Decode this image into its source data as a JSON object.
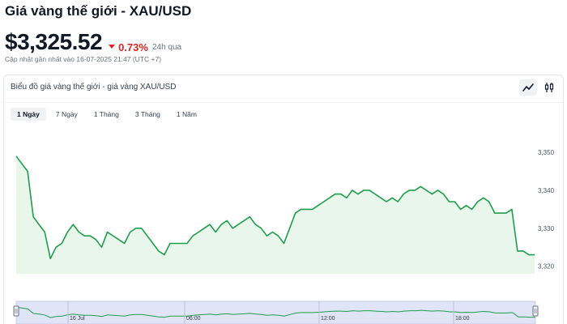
{
  "header": {
    "title": "Giá vàng thế giới - XAU/USD",
    "price": "$3,325.52",
    "change": "0.73%",
    "change_period": "24h qua",
    "updated": "Cập nhật gần nhất vào 16-07-2025 21:47 (UTC +7)"
  },
  "card": {
    "title": "Biểu đồ giá vàng thế giới - giá vàng XAU/USD",
    "tools": [
      {
        "icon": "line-chart-icon",
        "active": true
      },
      {
        "icon": "candlestick-icon",
        "active": false
      }
    ]
  },
  "ranges": [
    {
      "label": "1 Ngày",
      "active": true
    },
    {
      "label": "7 Ngày",
      "active": false
    },
    {
      "label": "1 Tháng",
      "active": false
    },
    {
      "label": "3 Tháng",
      "active": false
    },
    {
      "label": "1 Năm",
      "active": false
    }
  ],
  "colors": {
    "line": "#1e9e4a",
    "area": "#e9f6ec",
    "navigator_bg": "#dfe4f7",
    "down": "#dc2626"
  },
  "chart_data": {
    "type": "area",
    "ylim": [
      3318,
      3356
    ],
    "yticks": [
      "3,350",
      "3,340",
      "3,330",
      "3,320"
    ],
    "ytick_values": [
      3350,
      3340,
      3330,
      3320
    ],
    "values": [
      3349,
      3347,
      3345,
      3333,
      3331,
      3329,
      3322,
      3325,
      3326,
      3329,
      3331,
      3329,
      3328,
      3328,
      3327,
      3325,
      3329,
      3328,
      3327,
      3326,
      3329,
      3330,
      3330,
      3328,
      3326,
      3324,
      3323,
      3326,
      3326,
      3326,
      3326,
      3328,
      3329,
      3330,
      3331,
      3329,
      3331,
      3332,
      3330,
      3331,
      3332,
      3333,
      3331,
      3330,
      3328,
      3329,
      3328,
      3326,
      3330,
      3334,
      3335,
      3335,
      3335,
      3336,
      3337,
      3338,
      3339,
      3339,
      3338,
      3340,
      3339,
      3340,
      3340,
      3339,
      3338,
      3337,
      3338,
      3337,
      3339,
      3340,
      3340,
      3341,
      3340,
      3339,
      3340,
      3339,
      3337,
      3337,
      3335,
      3336,
      3335,
      3337,
      3338,
      3337,
      3334,
      3334,
      3334,
      3335,
      3324,
      3324,
      3323,
      3323
    ],
    "navigator_labels": [
      "16 Jul",
      "06:00",
      "12:00",
      "18:00"
    ]
  }
}
